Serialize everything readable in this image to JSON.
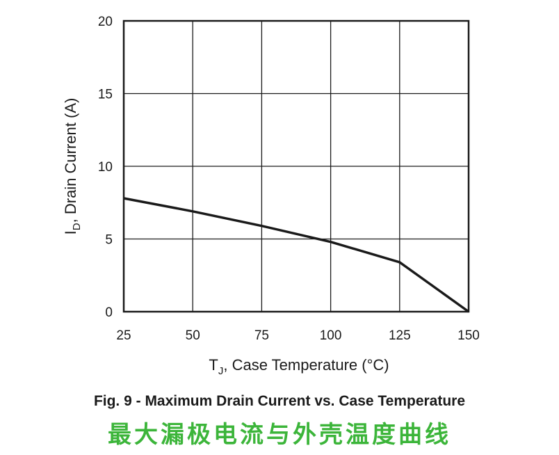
{
  "chart_data": {
    "type": "line",
    "title": "Fig. 9 - Maximum Drain Current vs. Case Temperature",
    "subtitle": "最大漏极电流与外壳温度曲线",
    "xlabel_main": "T",
    "xlabel_sub": "J",
    "xlabel_rest": ", Case Temperature (°C)",
    "ylabel_main": "I",
    "ylabel_sub": "D",
    "ylabel_rest": ", Drain Current (A)",
    "xlim": [
      25,
      150
    ],
    "ylim": [
      0,
      20
    ],
    "x_ticks": [
      25,
      50,
      75,
      100,
      125,
      150
    ],
    "y_ticks": [
      0,
      5,
      10,
      15,
      20
    ],
    "x_tick_labels": [
      "25",
      "50",
      "75",
      "100",
      "125",
      "150"
    ],
    "y_tick_labels": [
      "0",
      "5",
      "10",
      "15",
      "20"
    ],
    "grid": true,
    "series": [
      {
        "x": [
          25,
          50,
          75,
          100,
          125,
          150
        ],
        "y": [
          7.8,
          6.9,
          5.9,
          4.8,
          3.4,
          0
        ]
      }
    ],
    "colors": {
      "line": "#1a1a1a",
      "grid": "#1a1a1a",
      "subtitle": "#3cb53a"
    }
  }
}
